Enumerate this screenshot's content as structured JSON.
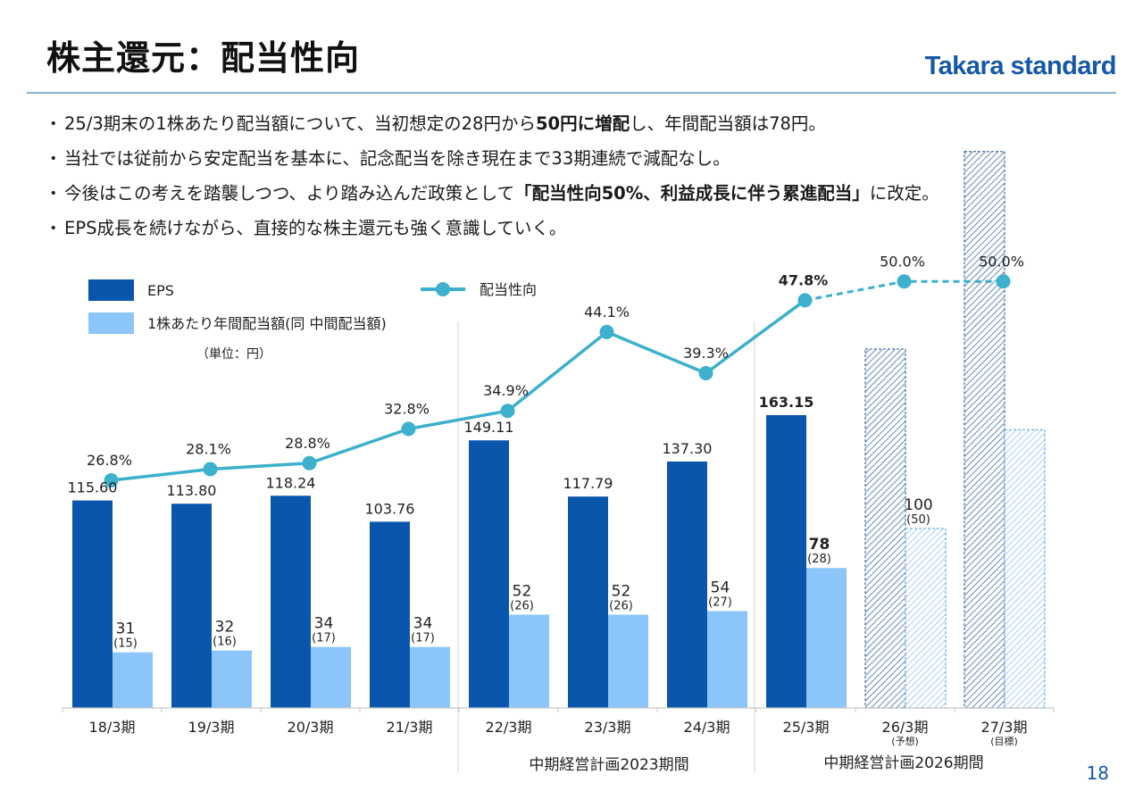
{
  "title": "株主還元：配当性向",
  "logo": "Takara standard",
  "page_number": "18",
  "bullets": [
    {
      "parts": [
        {
          "t": "25/3期末の1株あたり配当額について、当初想定の28円から"
        },
        {
          "t": "50円に増配",
          "b": true
        },
        {
          "t": "し、年間配当額は78円。"
        }
      ]
    },
    {
      "parts": [
        {
          "t": "当社では従前から安定配当を基本に、記念配当を除き現在まで33期連続で減配なし。"
        }
      ]
    },
    {
      "parts": [
        {
          "t": "今後はこの考えを踏襲しつつ、より踏み込んだ政策として"
        },
        {
          "t": "「配当性向50%、利益成長に伴う累進配当」",
          "b": true
        },
        {
          "t": "に改定。"
        }
      ]
    },
    {
      "parts": [
        {
          "t": "EPS成長を続けながら、直接的な株主還元も強く意識していく。"
        }
      ]
    }
  ],
  "bullet_marker": "・",
  "chart_data": {
    "type": "bar",
    "categories": [
      "18/3期",
      "19/3期",
      "20/3期",
      "21/3期",
      "22/3期",
      "23/3期",
      "24/3期",
      "25/3期",
      "26/3期",
      "27/3期"
    ],
    "category_notes": [
      "",
      "",
      "",
      "",
      "",
      "",
      "",
      "",
      "(予想)",
      "(目標)"
    ],
    "series": [
      {
        "name": "EPS",
        "color": "#0a56ad",
        "values": [
          115.6,
          113.8,
          118.24,
          103.76,
          149.11,
          117.79,
          137.3,
          163.15,
          null,
          null
        ],
        "labels": [
          "115.60",
          "113.80",
          "118.24",
          "103.76",
          "149.11",
          "117.79",
          "137.30",
          "163.15",
          "",
          ""
        ]
      },
      {
        "name": "1株あたり年間配当額(同 中間配当額)",
        "color": "#8cc5fa",
        "values": [
          31,
          32,
          34,
          34,
          52,
          52,
          54,
          78,
          100,
          155
        ],
        "labels": [
          "31",
          "32",
          "34",
          "34",
          "52",
          "52",
          "54",
          "78",
          "100",
          ""
        ],
        "interim": [
          "(15)",
          "(16)",
          "(17)",
          "(17)",
          "(26)",
          "(26)",
          "(27)",
          "(28)",
          "(50)",
          ""
        ]
      },
      {
        "name": "配当性向",
        "color": "#3cb0cd",
        "values": [
          26.8,
          28.1,
          28.8,
          32.8,
          34.9,
          44.1,
          39.3,
          47.8,
          50.0,
          50.0
        ],
        "labels": [
          "26.8%",
          "28.1%",
          "28.8%",
          "32.8%",
          "34.9%",
          "44.1%",
          "39.3%",
          "47.8%",
          "50.0%",
          "50.0%"
        ]
      }
    ],
    "projected_eps": [
      {
        "category": "26/3期",
        "value": 200
      },
      {
        "category": "27/3期",
        "value": 310
      }
    ],
    "unit_note": "（単位：円）",
    "periods": [
      "中期経営計画2023期間",
      "中期経営計画2026期間"
    ]
  }
}
